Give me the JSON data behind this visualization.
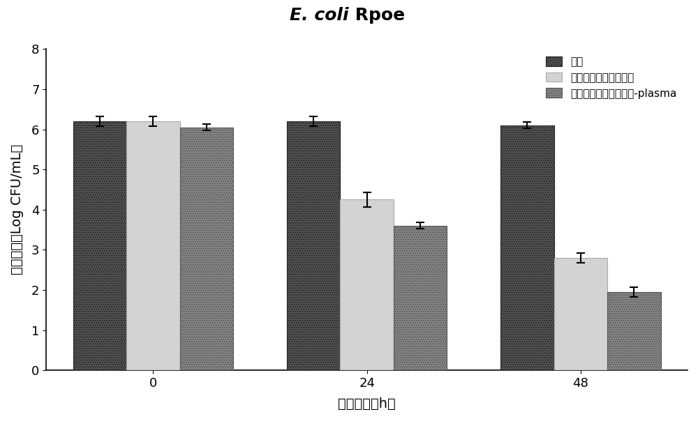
{
  "title_italic": "E. coli",
  "title_normal": " Rpoe",
  "xlabel": "作用时间（h）",
  "ylabel": "残存菌数（Log CFU/mL）",
  "groups": [
    "0",
    "24",
    "48"
  ],
  "series_labels": [
    "空白",
    "百里香精油固体脂质体",
    "百里香精油固体脂质体-plasma"
  ],
  "values": [
    [
      6.2,
      6.2,
      6.1
    ],
    [
      6.2,
      4.25,
      2.8
    ],
    [
      6.05,
      3.6,
      1.95
    ]
  ],
  "errors": [
    [
      0.12,
      0.12,
      0.08
    ],
    [
      0.12,
      0.18,
      0.12
    ],
    [
      0.08,
      0.08,
      0.12
    ]
  ],
  "colors": [
    "#555555",
    "#d3d3d3",
    "#888888"
  ],
  "hatch_patterns": [
    ".....",
    "",
    "....."
  ],
  "edgecolors": [
    "#222222",
    "#aaaaaa",
    "#555555"
  ],
  "ylim": [
    0,
    8
  ],
  "yticks": [
    0,
    1,
    2,
    3,
    4,
    5,
    6,
    7,
    8
  ],
  "legend_fontsize": 12,
  "axis_fontsize": 14,
  "title_fontsize": 18,
  "tick_fontsize": 13,
  "bar_width": 0.25,
  "group_positions": [
    0,
    1,
    2
  ],
  "background_color": "#ffffff"
}
